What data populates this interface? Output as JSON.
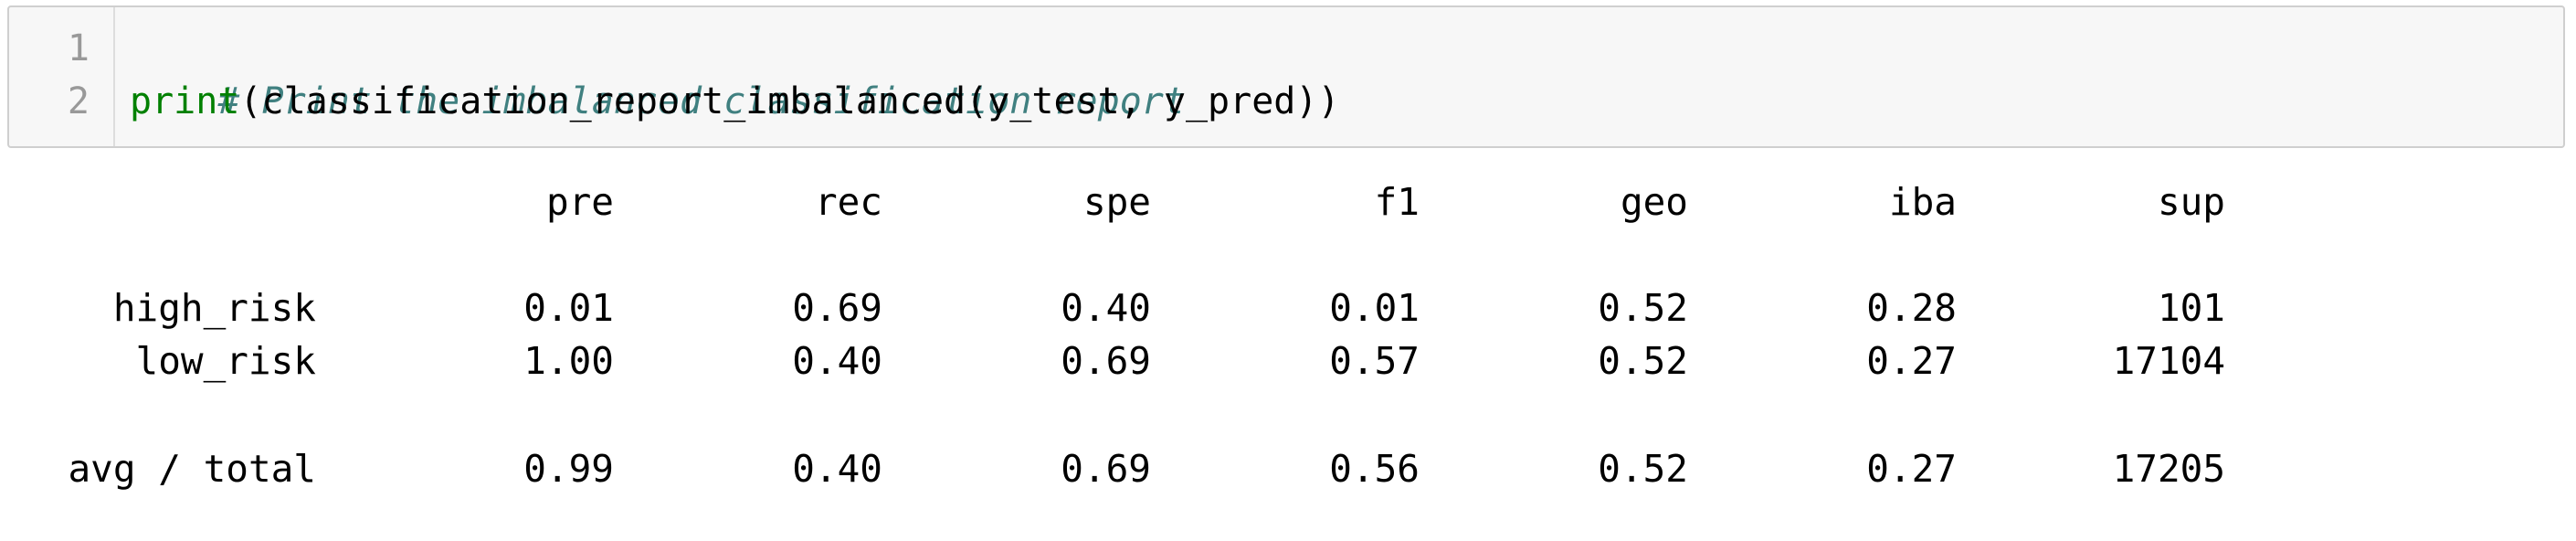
{
  "code_cell": {
    "line_numbers": [
      "1",
      "2"
    ],
    "comment": "# Print the imbalanced classification report",
    "print_keyword": "print",
    "call_rest": "(classification_report_imbalanced(y_test, y_pred))"
  },
  "report": {
    "columns": [
      "pre",
      "rec",
      "spe",
      "f1",
      "geo",
      "iba",
      "sup"
    ],
    "rows": [
      {
        "label": "high_risk",
        "values": [
          "0.01",
          "0.69",
          "0.40",
          "0.01",
          "0.52",
          "0.28",
          "101"
        ]
      },
      {
        "label": "low_risk",
        "values": [
          "1.00",
          "0.40",
          "0.69",
          "0.57",
          "0.52",
          "0.27",
          "17104"
        ]
      }
    ],
    "total": {
      "label": "avg / total",
      "values": [
        "0.99",
        "0.40",
        "0.69",
        "0.56",
        "0.52",
        "0.27",
        "17205"
      ]
    }
  },
  "colors": {
    "comment": "#408080",
    "builtin": "#008000",
    "gutter_text": "#999999",
    "cell_bg": "#f7f7f7"
  }
}
